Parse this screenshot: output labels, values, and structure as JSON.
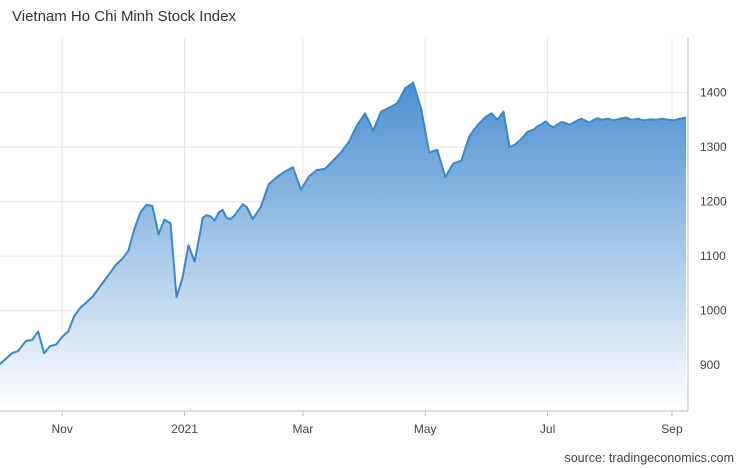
{
  "chart_data": {
    "type": "area",
    "title": "Vietnam Ho Chi Minh Stock Index",
    "source": "source: tradingeconomics.com",
    "xlabel": "",
    "ylabel": "",
    "xlim": [
      0,
      343
    ],
    "ylim": [
      816,
      1500
    ],
    "x_ticks": [
      {
        "label": "Nov",
        "x": 31
      },
      {
        "label": "2021",
        "x": 92
      },
      {
        "label": "Mar",
        "x": 151
      },
      {
        "label": "May",
        "x": 212
      },
      {
        "label": "Jul",
        "x": 273
      },
      {
        "label": "Sep",
        "x": 335
      }
    ],
    "y_ticks": [
      900,
      1000,
      1100,
      1200,
      1300,
      1400
    ],
    "grid": true,
    "legend": "none",
    "colors": {
      "line": "#3f86c8",
      "fill_top": "#4a8fd0",
      "fill_bottom": "#ffffff",
      "grid": "#e6e6e6"
    },
    "series": [
      {
        "x": [
          0,
          3,
          6,
          9,
          13,
          16,
          19,
          22,
          25,
          28,
          31,
          34,
          37,
          40,
          43,
          46,
          49,
          52,
          55,
          58,
          61,
          64,
          67,
          70,
          73,
          76,
          79,
          82,
          85,
          88,
          91,
          94,
          97,
          100,
          101,
          103,
          105,
          107,
          109,
          111,
          113,
          115,
          117,
          119,
          121,
          123,
          126,
          130,
          134,
          138,
          142,
          146,
          150,
          154,
          158,
          162,
          166,
          170,
          174,
          178,
          182,
          186,
          190,
          194,
          198,
          202,
          206,
          210,
          214,
          218,
          222,
          226,
          230,
          234,
          238,
          242,
          245,
          248,
          251,
          254,
          257,
          260,
          263,
          266,
          268,
          270,
          272,
          274,
          276,
          278,
          280,
          282,
          284,
          286,
          288,
          290,
          292,
          294,
          296,
          298,
          300,
          303,
          306,
          309,
          312,
          315,
          318,
          321,
          324,
          327,
          330,
          333,
          336,
          339,
          342
        ],
        "values": [
          902,
          912,
          922,
          926,
          945,
          946,
          962,
          922,
          935,
          938,
          952,
          962,
          990,
          1005,
          1015,
          1025,
          1040,
          1055,
          1070,
          1085,
          1095,
          1110,
          1150,
          1180,
          1194,
          1192,
          1140,
          1167,
          1160,
          1025,
          1060,
          1120,
          1090,
          1148,
          1170,
          1175,
          1173,
          1165,
          1180,
          1185,
          1170,
          1168,
          1175,
          1185,
          1195,
          1190,
          1168,
          1190,
          1232,
          1245,
          1255,
          1263,
          1222,
          1246,
          1258,
          1260,
          1275,
          1290,
          1310,
          1340,
          1362,
          1330,
          1365,
          1372,
          1380,
          1408,
          1418,
          1370,
          1290,
          1295,
          1245,
          1270,
          1275,
          1320,
          1340,
          1355,
          1362,
          1350,
          1365,
          1300,
          1305,
          1315,
          1328,
          1332,
          1338,
          1342,
          1347,
          1340,
          1336,
          1342,
          1346,
          1344,
          1341,
          1345,
          1349,
          1352,
          1348,
          1345,
          1350,
          1353,
          1350,
          1352,
          1349,
          1352,
          1354,
          1350,
          1352,
          1349,
          1351,
          1350,
          1352,
          1350,
          1349,
          1352,
          1354
        ]
      }
    ]
  }
}
